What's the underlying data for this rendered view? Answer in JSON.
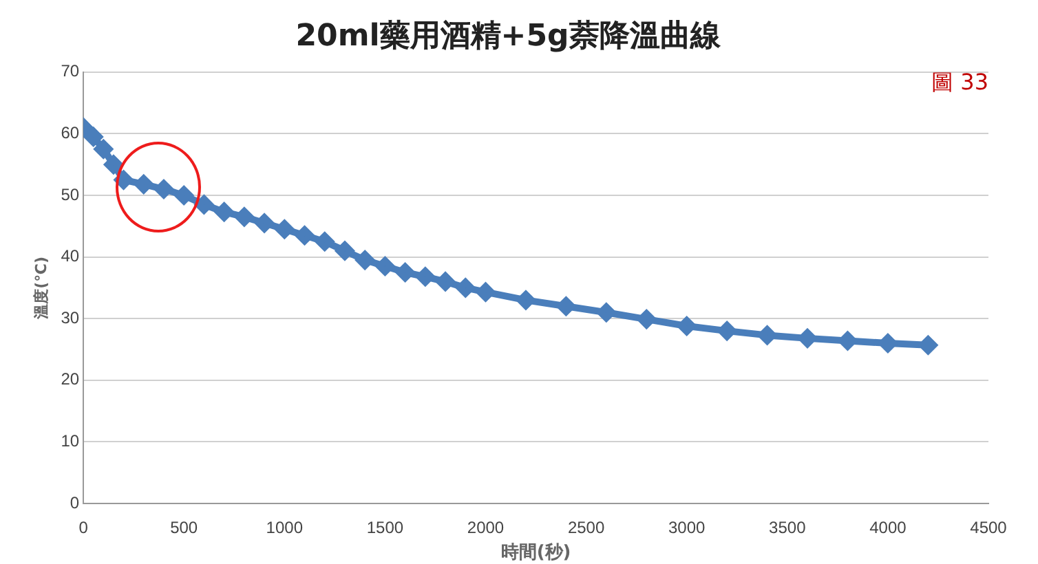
{
  "chart_data": {
    "type": "line",
    "title": "20ml藥用酒精+5g萘降溫曲線",
    "xlabel": "時間(秒)",
    "ylabel": "溫度(℃)",
    "annotations": [
      "圖 33"
    ],
    "x": [
      0,
      50,
      100,
      150,
      200,
      300,
      400,
      500,
      600,
      700,
      800,
      900,
      1000,
      1100,
      1200,
      1300,
      1400,
      1500,
      1600,
      1700,
      1800,
      1900,
      2000,
      2200,
      2400,
      2600,
      2800,
      3000,
      3200,
      3400,
      3600,
      3800,
      4000,
      4200
    ],
    "series": [
      {
        "color": "#4a7ebb",
        "values": [
          61,
          59.5,
          57.5,
          55,
          52.5,
          51.8,
          51,
          50,
          48.5,
          47.3,
          46.5,
          45.5,
          44.5,
          43.5,
          42.5,
          41,
          39.5,
          38.5,
          37.5,
          36.8,
          36,
          35,
          34.3,
          33,
          32,
          31,
          29.9,
          28.8,
          28,
          27.3,
          26.8,
          26.4,
          26,
          25.7
        ]
      }
    ],
    "xlim": [
      0,
      4500
    ],
    "xticks": [
      0,
      500,
      1000,
      1500,
      2000,
      2500,
      3000,
      3500,
      4000,
      4500
    ],
    "ylim": [
      0,
      70
    ],
    "yticks": [
      0,
      10,
      20,
      30,
      40,
      50,
      60,
      70
    ],
    "grid": "y",
    "legend": false,
    "marker": "diamond",
    "line_style": "solid"
  }
}
